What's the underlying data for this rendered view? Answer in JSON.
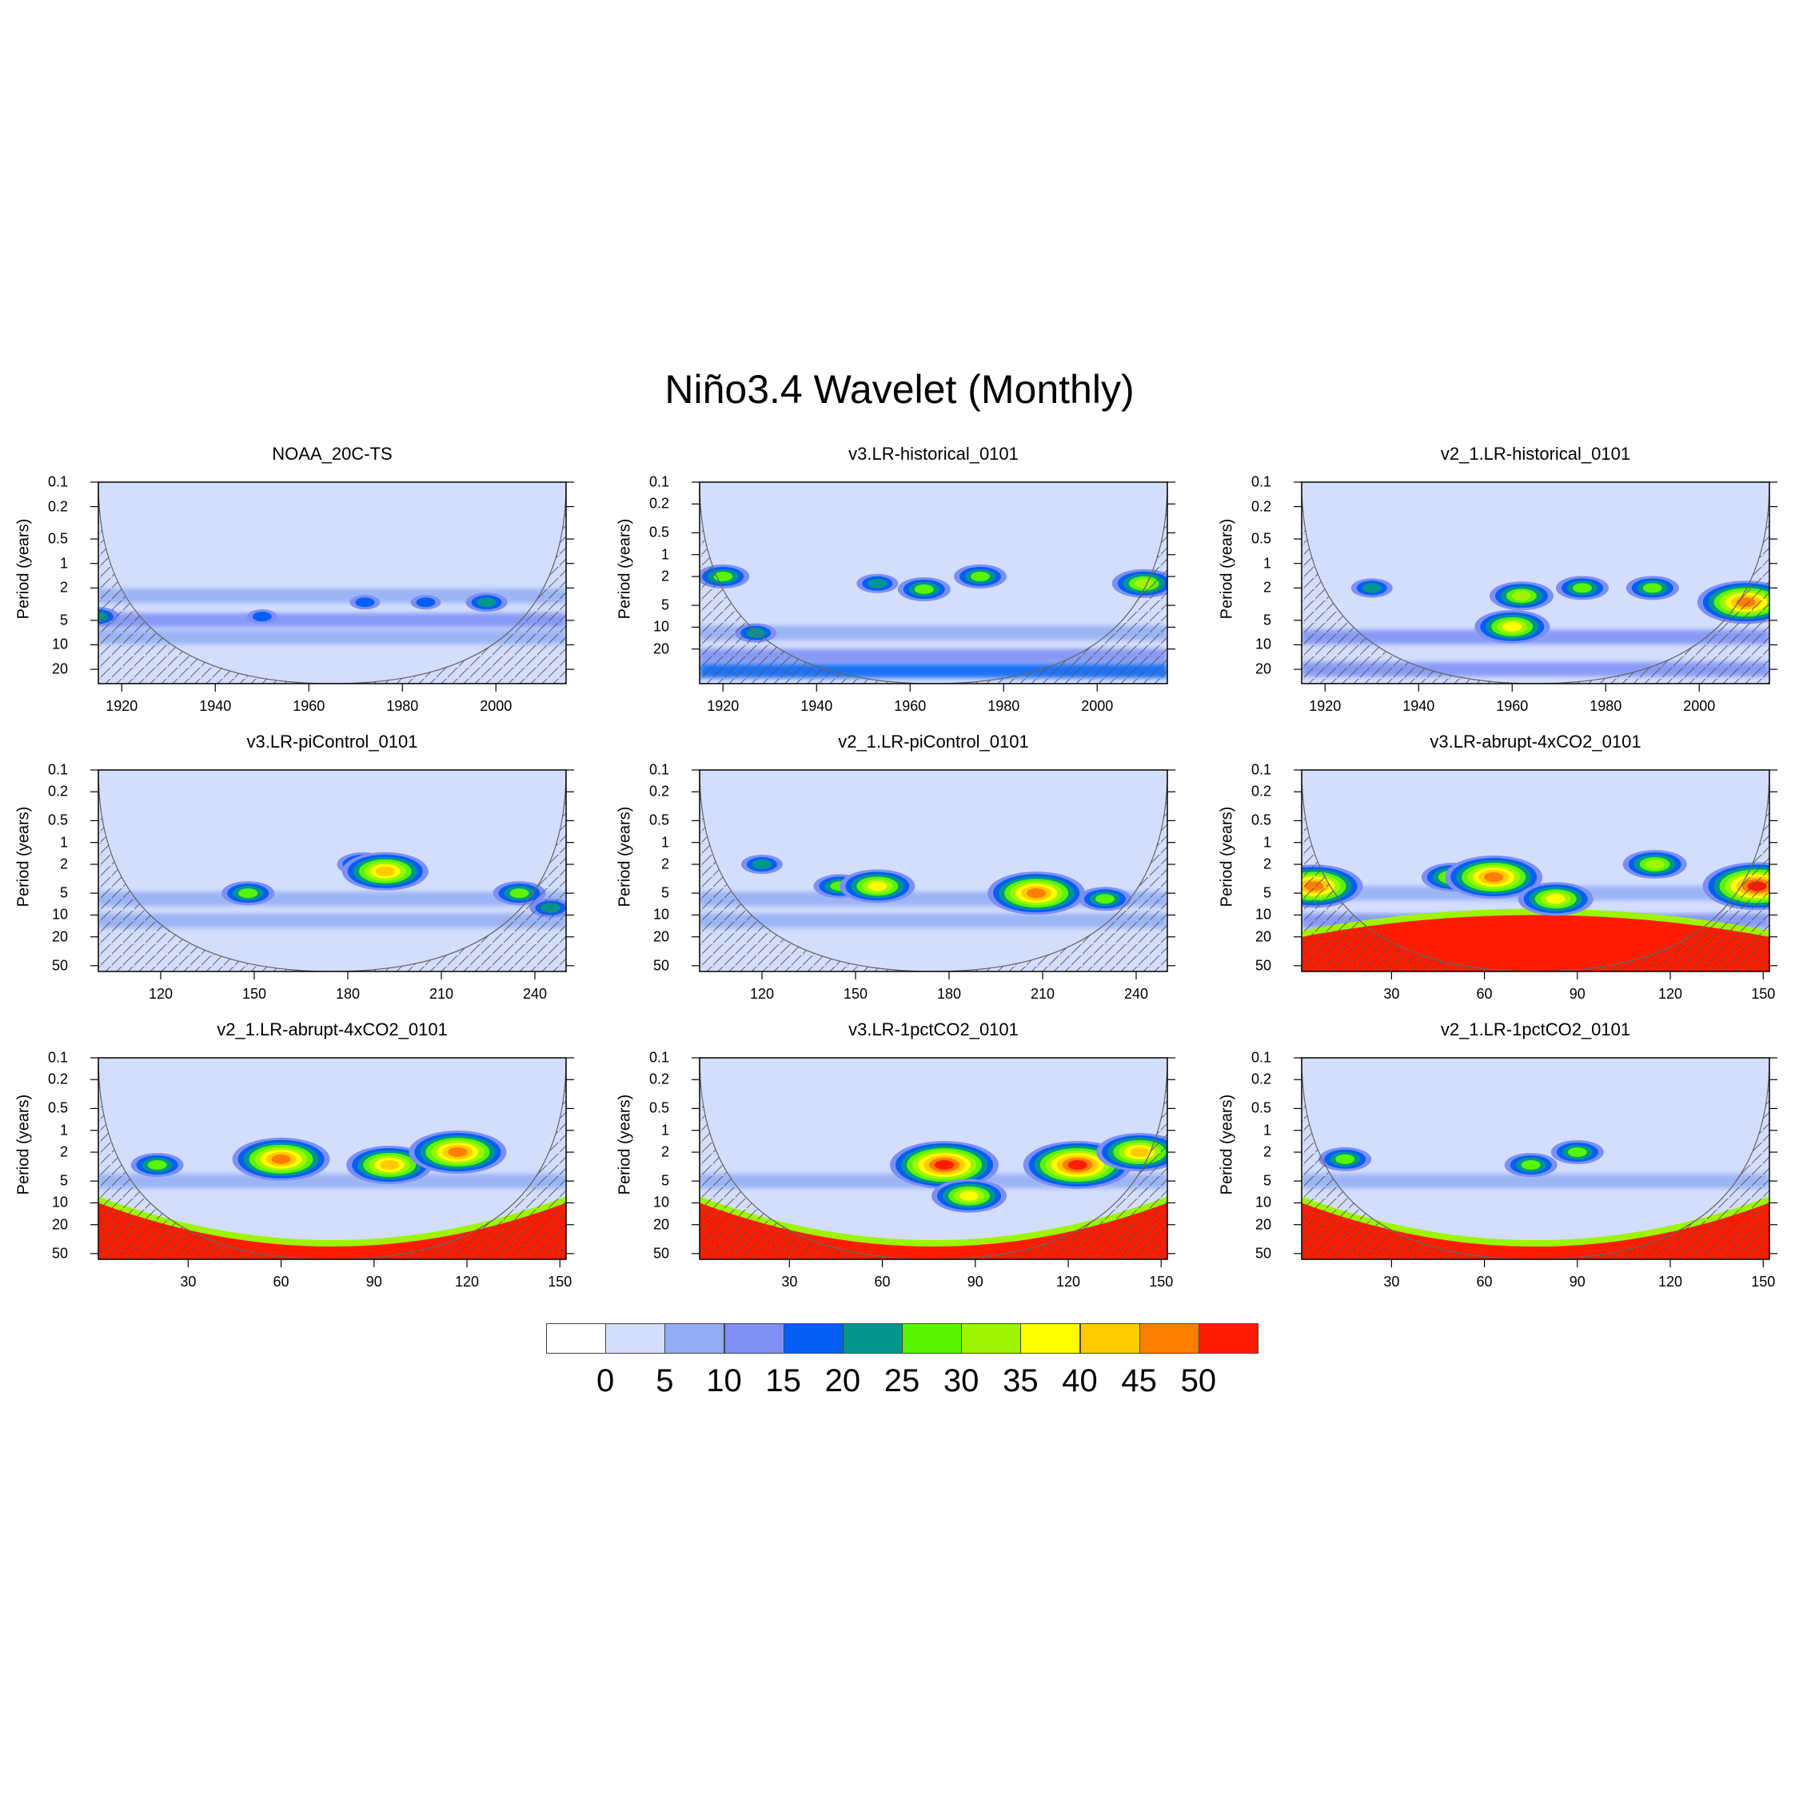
{
  "title": "Niño3.4 Wavelet (Monthly)",
  "colorbar": {
    "levels": [
      "0",
      "5",
      "10",
      "15",
      "20",
      "25",
      "30",
      "35",
      "40",
      "45",
      "50"
    ],
    "colors": [
      "#ffffff",
      "#d3defc",
      "#92adf5",
      "#7d8ff5",
      "#035ff5",
      "#03968e",
      "#58f503",
      "#9df503",
      "#ffff00",
      "#ffcb00",
      "#ff7d00",
      "#ff1c00"
    ]
  },
  "chart_data": [
    {
      "type": "heatmap",
      "title": "NOAA_20C-TS",
      "ylabel": "Period (years)",
      "yticks": [
        "0.1",
        "0.2",
        "0.5",
        "1",
        "2",
        "5",
        "10",
        "20"
      ],
      "xticks": [
        "1920",
        "1940",
        "1960",
        "1980",
        "2000"
      ],
      "xlim": [
        1915,
        2015
      ],
      "ylim": [
        0.1,
        30
      ],
      "bands": [
        {
          "period": 5,
          "level": 3
        },
        {
          "period": 2.5,
          "level": 2
        },
        {
          "period": 8,
          "level": 2
        }
      ],
      "blobs": [
        {
          "x": 1915,
          "period": 4.5,
          "level": 5
        },
        {
          "x": 1950,
          "period": 4.5,
          "level": 4
        },
        {
          "x": 1972,
          "period": 3,
          "level": 4
        },
        {
          "x": 1985,
          "period": 3,
          "level": 4
        },
        {
          "x": 1998,
          "period": 3,
          "level": 5
        }
      ]
    },
    {
      "type": "heatmap",
      "title": "v3.LR-historical_0101",
      "ylabel": "Period (years)",
      "yticks": [
        "0.1",
        "0.2",
        "0.5",
        "1",
        "2",
        "5",
        "10",
        "20"
      ],
      "xticks": [
        "1920",
        "1940",
        "1960",
        "1980",
        "2000"
      ],
      "xlim": [
        1915,
        2015
      ],
      "ylim": [
        0.1,
        60
      ],
      "bands": [
        {
          "period": 12,
          "level": 2
        },
        {
          "period": 25,
          "level": 3
        },
        {
          "period": 40,
          "level": 4
        }
      ],
      "blobs": [
        {
          "x": 1920,
          "period": 2,
          "level": 6
        },
        {
          "x": 1927,
          "period": 12,
          "level": 5
        },
        {
          "x": 1953,
          "period": 2.5,
          "level": 5
        },
        {
          "x": 1963,
          "period": 3,
          "level": 6
        },
        {
          "x": 1975,
          "period": 2,
          "level": 6
        },
        {
          "x": 2010,
          "period": 2.5,
          "level": 7
        }
      ]
    },
    {
      "type": "heatmap",
      "title": "v2_1.LR-historical_0101",
      "ylabel": "Period (years)",
      "yticks": [
        "0.1",
        "0.2",
        "0.5",
        "1",
        "2",
        "5",
        "10",
        "20"
      ],
      "xticks": [
        "1920",
        "1940",
        "1960",
        "1980",
        "2000"
      ],
      "xlim": [
        1915,
        2015
      ],
      "ylim": [
        0.1,
        30
      ],
      "bands": [
        {
          "period": 8,
          "level": 3
        },
        {
          "period": 20,
          "level": 3
        }
      ],
      "blobs": [
        {
          "x": 1930,
          "period": 2,
          "level": 5
        },
        {
          "x": 1960,
          "period": 6,
          "level": 8
        },
        {
          "x": 1962,
          "period": 2.5,
          "level": 7
        },
        {
          "x": 1975,
          "period": 2,
          "level": 6
        },
        {
          "x": 1990,
          "period": 2,
          "level": 6
        },
        {
          "x": 2010,
          "period": 3,
          "level": 10
        }
      ]
    },
    {
      "type": "heatmap",
      "title": "v3.LR-piControl_0101",
      "ylabel": "Period (years)",
      "yticks": [
        "0.1",
        "0.2",
        "0.5",
        "1",
        "2",
        "5",
        "10",
        "20",
        "50"
      ],
      "xticks": [
        "120",
        "150",
        "180",
        "210",
        "240"
      ],
      "xlim": [
        100,
        250
      ],
      "ylim": [
        0.1,
        60
      ],
      "bands": [
        {
          "period": 6,
          "level": 2
        },
        {
          "period": 12,
          "level": 2
        }
      ],
      "blobs": [
        {
          "x": 148,
          "period": 5,
          "level": 6
        },
        {
          "x": 185,
          "period": 2,
          "level": 6
        },
        {
          "x": 192,
          "period": 2.5,
          "level": 9
        },
        {
          "x": 235,
          "period": 5,
          "level": 6
        },
        {
          "x": 245,
          "period": 8,
          "level": 5
        }
      ]
    },
    {
      "type": "heatmap",
      "title": "v2_1.LR-piControl_0101",
      "ylabel": "Period (years)",
      "yticks": [
        "0.1",
        "0.2",
        "0.5",
        "1",
        "2",
        "5",
        "10",
        "20",
        "50"
      ],
      "xticks": [
        "120",
        "150",
        "180",
        "210",
        "240"
      ],
      "xlim": [
        100,
        250
      ],
      "ylim": [
        0.1,
        60
      ],
      "bands": [
        {
          "period": 6,
          "level": 2
        },
        {
          "period": 12,
          "level": 2
        }
      ],
      "blobs": [
        {
          "x": 120,
          "period": 2,
          "level": 5
        },
        {
          "x": 145,
          "period": 4,
          "level": 6
        },
        {
          "x": 157,
          "period": 4,
          "level": 8
        },
        {
          "x": 208,
          "period": 5,
          "level": 10
        },
        {
          "x": 230,
          "period": 6,
          "level": 6
        }
      ]
    },
    {
      "type": "heatmap",
      "title": "v3.LR-abrupt-4xCO2_0101",
      "ylabel": "Period (years)",
      "yticks": [
        "0.1",
        "0.2",
        "0.5",
        "1",
        "2",
        "5",
        "10",
        "20",
        "50"
      ],
      "xticks": [
        "30",
        "60",
        "90",
        "120",
        "150"
      ],
      "xlim": [
        1,
        152
      ],
      "ylim": [
        0.1,
        60
      ],
      "bands": [
        {
          "period": 5,
          "level": 2
        },
        {
          "period": 12,
          "level": 3
        }
      ],
      "blobs": [
        {
          "x": 5,
          "period": 4,
          "level": 10
        },
        {
          "x": 50,
          "period": 3,
          "level": 7
        },
        {
          "x": 63,
          "period": 3,
          "level": 10
        },
        {
          "x": 83,
          "period": 6,
          "level": 8
        },
        {
          "x": 115,
          "period": 2,
          "level": 7
        },
        {
          "x": 148,
          "period": 4,
          "level": 11
        }
      ],
      "red_floor": [
        20,
        10
      ]
    },
    {
      "type": "heatmap",
      "title": "v2_1.LR-abrupt-4xCO2_0101",
      "ylabel": "Period (years)",
      "yticks": [
        "0.1",
        "0.2",
        "0.5",
        "1",
        "2",
        "5",
        "10",
        "20",
        "50"
      ],
      "xticks": [
        "30",
        "60",
        "90",
        "120",
        "150"
      ],
      "xlim": [
        1,
        152
      ],
      "ylim": [
        0.1,
        60
      ],
      "bands": [
        {
          "period": 5,
          "level": 2
        }
      ],
      "blobs": [
        {
          "x": 20,
          "period": 3,
          "level": 6
        },
        {
          "x": 60,
          "period": 2.5,
          "level": 10
        },
        {
          "x": 95,
          "period": 3,
          "level": 9
        },
        {
          "x": 117,
          "period": 2,
          "level": 10
        }
      ],
      "red_floor": [
        10,
        40
      ]
    },
    {
      "type": "heatmap",
      "title": "v3.LR-1pctCO2_0101",
      "ylabel": "Period (years)",
      "yticks": [
        "0.1",
        "0.2",
        "0.5",
        "1",
        "2",
        "5",
        "10",
        "20",
        "50"
      ],
      "xticks": [
        "30",
        "60",
        "90",
        "120",
        "150"
      ],
      "xlim": [
        1,
        152
      ],
      "ylim": [
        0.1,
        60
      ],
      "bands": [
        {
          "period": 5,
          "level": 2
        }
      ],
      "blobs": [
        {
          "x": 80,
          "period": 3,
          "level": 11
        },
        {
          "x": 88,
          "period": 8,
          "level": 8
        },
        {
          "x": 123,
          "period": 3,
          "level": 11
        },
        {
          "x": 143,
          "period": 2,
          "level": 9
        }
      ],
      "red_floor": [
        10,
        40
      ]
    },
    {
      "type": "heatmap",
      "title": "v2_1.LR-1pctCO2_0101",
      "ylabel": "Period (years)",
      "yticks": [
        "0.1",
        "0.2",
        "0.5",
        "1",
        "2",
        "5",
        "10",
        "20",
        "50"
      ],
      "xticks": [
        "30",
        "60",
        "90",
        "120",
        "150"
      ],
      "xlim": [
        1,
        152
      ],
      "ylim": [
        0.1,
        60
      ],
      "bands": [
        {
          "period": 5,
          "level": 2
        }
      ],
      "blobs": [
        {
          "x": 15,
          "period": 2.5,
          "level": 6
        },
        {
          "x": 75,
          "period": 3,
          "level": 6
        },
        {
          "x": 90,
          "period": 2,
          "level": 6
        }
      ],
      "red_floor": [
        10,
        40
      ]
    }
  ]
}
